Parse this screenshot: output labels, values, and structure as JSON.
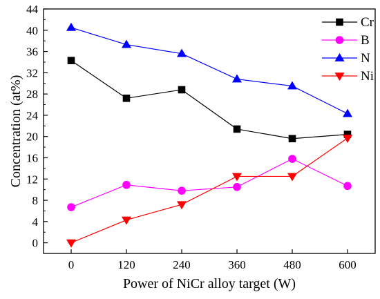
{
  "chart_data": {
    "type": "line",
    "xlabel": "Power of NiCr alloy target (W)",
    "ylabel": "Concentration (at%)",
    "x": [
      0,
      120,
      240,
      360,
      480,
      600
    ],
    "x_ticks": [
      "0",
      "120",
      "240",
      "360",
      "480",
      "600"
    ],
    "xlim": [
      -60,
      660
    ],
    "ylim": [
      -2,
      44
    ],
    "y_ticks": [
      "0",
      "4",
      "8",
      "12",
      "16",
      "20",
      "24",
      "28",
      "32",
      "36",
      "40",
      "44"
    ],
    "grid": false,
    "legend_position": "top-right",
    "series": [
      {
        "name": "Cr",
        "marker": "square",
        "color": "#000000",
        "values": [
          34.3,
          27.2,
          28.8,
          21.4,
          19.6,
          20.4
        ]
      },
      {
        "name": "B",
        "marker": "circle",
        "color": "#ff00ff",
        "values": [
          6.7,
          10.9,
          9.8,
          10.5,
          15.8,
          10.7
        ]
      },
      {
        "name": "N",
        "marker": "triangle-up",
        "color": "#0000ff",
        "values": [
          40.5,
          37.3,
          35.6,
          30.8,
          29.5,
          24.3
        ]
      },
      {
        "name": "Ni",
        "marker": "triangle-down",
        "color": "#ff0000",
        "values": [
          0.0,
          4.3,
          7.2,
          12.5,
          12.5,
          19.7
        ]
      }
    ]
  }
}
